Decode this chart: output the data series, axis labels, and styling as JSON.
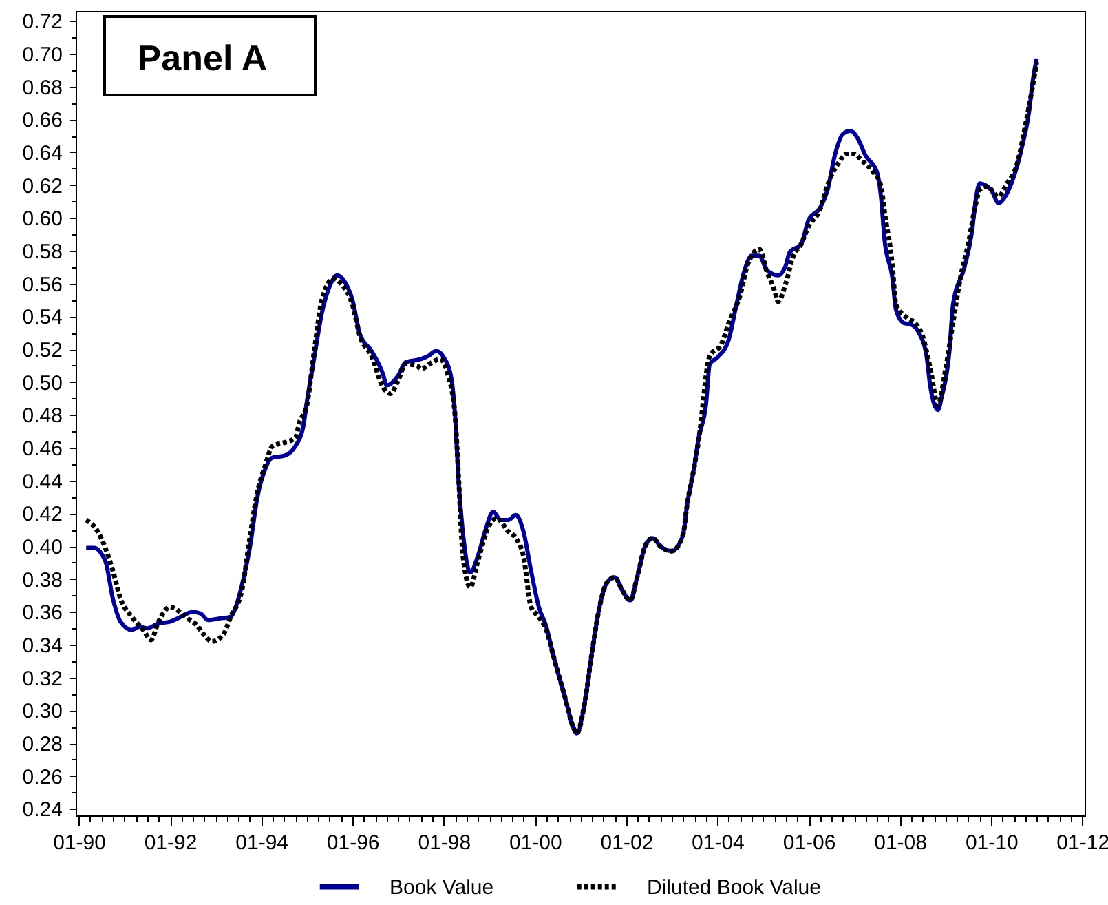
{
  "chart_data": {
    "type": "line",
    "annotations": [
      "Panel A"
    ],
    "xlim": [
      "1989-12-07",
      "2012-01-19"
    ],
    "ylim": [
      0.236,
      0.726
    ],
    "xticks": [
      {
        "value": "1990-01",
        "label": "01-90"
      },
      {
        "value": "1990-04",
        "label": null
      },
      {
        "value": "1990-07",
        "label": null
      },
      {
        "value": "1990-10",
        "label": null
      },
      {
        "value": "1991-01",
        "label": null
      },
      {
        "value": "1991-04",
        "label": null
      },
      {
        "value": "1991-07",
        "label": null
      },
      {
        "value": "1991-10",
        "label": null
      },
      {
        "value": "1992-01",
        "label": "01-92"
      },
      {
        "value": "1992-04",
        "label": null
      },
      {
        "value": "1992-07",
        "label": null
      },
      {
        "value": "1992-10",
        "label": null
      },
      {
        "value": "1993-01",
        "label": null
      },
      {
        "value": "1993-04",
        "label": null
      },
      {
        "value": "1993-07",
        "label": null
      },
      {
        "value": "1993-10",
        "label": null
      },
      {
        "value": "1994-01",
        "label": "01-94"
      },
      {
        "value": "1994-04",
        "label": null
      },
      {
        "value": "1994-07",
        "label": null
      },
      {
        "value": "1994-10",
        "label": null
      },
      {
        "value": "1995-01",
        "label": null
      },
      {
        "value": "1995-04",
        "label": null
      },
      {
        "value": "1995-07",
        "label": null
      },
      {
        "value": "1995-10",
        "label": null
      },
      {
        "value": "1996-01",
        "label": "01-96"
      },
      {
        "value": "1996-04",
        "label": null
      },
      {
        "value": "1996-07",
        "label": null
      },
      {
        "value": "1996-10",
        "label": null
      },
      {
        "value": "1997-01",
        "label": null
      },
      {
        "value": "1997-04",
        "label": null
      },
      {
        "value": "1997-07",
        "label": null
      },
      {
        "value": "1997-10",
        "label": null
      },
      {
        "value": "1998-01",
        "label": "01-98"
      },
      {
        "value": "1998-04",
        "label": null
      },
      {
        "value": "1998-07",
        "label": null
      },
      {
        "value": "1998-10",
        "label": null
      },
      {
        "value": "1999-01",
        "label": null
      },
      {
        "value": "1999-04",
        "label": null
      },
      {
        "value": "1999-07",
        "label": null
      },
      {
        "value": "1999-10",
        "label": null
      },
      {
        "value": "2000-01",
        "label": "01-00"
      },
      {
        "value": "2000-04",
        "label": null
      },
      {
        "value": "2000-07",
        "label": null
      },
      {
        "value": "2000-10",
        "label": null
      },
      {
        "value": "2001-01",
        "label": null
      },
      {
        "value": "2001-04",
        "label": null
      },
      {
        "value": "2001-07",
        "label": null
      },
      {
        "value": "2001-10",
        "label": null
      },
      {
        "value": "2002-01",
        "label": "01-02"
      },
      {
        "value": "2002-04",
        "label": null
      },
      {
        "value": "2002-07",
        "label": null
      },
      {
        "value": "2002-10",
        "label": null
      },
      {
        "value": "2003-01",
        "label": null
      },
      {
        "value": "2003-04",
        "label": null
      },
      {
        "value": "2003-07",
        "label": null
      },
      {
        "value": "2003-10",
        "label": null
      },
      {
        "value": "2004-01",
        "label": "01-04"
      },
      {
        "value": "2004-04",
        "label": null
      },
      {
        "value": "2004-07",
        "label": null
      },
      {
        "value": "2004-10",
        "label": null
      },
      {
        "value": "2005-01",
        "label": null
      },
      {
        "value": "2005-04",
        "label": null
      },
      {
        "value": "2005-07",
        "label": null
      },
      {
        "value": "2005-10",
        "label": null
      },
      {
        "value": "2006-01",
        "label": "01-06"
      },
      {
        "value": "2006-04",
        "label": null
      },
      {
        "value": "2006-07",
        "label": null
      },
      {
        "value": "2006-10",
        "label": null
      },
      {
        "value": "2007-01",
        "label": null
      },
      {
        "value": "2007-04",
        "label": null
      },
      {
        "value": "2007-07",
        "label": null
      },
      {
        "value": "2007-10",
        "label": null
      },
      {
        "value": "2008-01",
        "label": "01-08"
      },
      {
        "value": "2008-04",
        "label": null
      },
      {
        "value": "2008-07",
        "label": null
      },
      {
        "value": "2008-10",
        "label": null
      },
      {
        "value": "2009-01",
        "label": null
      },
      {
        "value": "2009-04",
        "label": null
      },
      {
        "value": "2009-07",
        "label": null
      },
      {
        "value": "2009-10",
        "label": null
      },
      {
        "value": "2010-01",
        "label": "01-10"
      },
      {
        "value": "2010-04",
        "label": null
      },
      {
        "value": "2010-07",
        "label": null
      },
      {
        "value": "2010-10",
        "label": null
      },
      {
        "value": "2011-01",
        "label": null
      },
      {
        "value": "2011-04",
        "label": null
      },
      {
        "value": "2011-07",
        "label": null
      },
      {
        "value": "2011-10",
        "label": null
      },
      {
        "value": "2012-01",
        "label": "01-12"
      }
    ],
    "yticks": [
      0.24,
      {
        "value": 0.25,
        "label": null
      },
      0.26,
      {
        "value": 0.27,
        "label": null
      },
      0.28,
      {
        "value": 0.29,
        "label": null
      },
      {
        "value": 0.3,
        "label": "0.30"
      },
      {
        "value": 0.31,
        "label": null
      },
      0.32,
      {
        "value": 0.33,
        "label": null
      },
      0.34,
      {
        "value": 0.35,
        "label": null
      },
      0.36,
      {
        "value": 0.37,
        "label": null
      },
      0.38,
      {
        "value": 0.39,
        "label": null
      },
      {
        "value": 0.4,
        "label": "0.40"
      },
      {
        "value": 0.41,
        "label": null
      },
      0.42,
      {
        "value": 0.43,
        "label": null
      },
      0.44,
      {
        "value": 0.45,
        "label": null
      },
      0.46,
      {
        "value": 0.47,
        "label": null
      },
      0.48,
      {
        "value": 0.49,
        "label": null
      },
      {
        "value": 0.5,
        "label": "0.50"
      },
      {
        "value": 0.51,
        "label": null
      },
      0.52,
      {
        "value": 0.53,
        "label": null
      },
      0.54,
      {
        "value": 0.55,
        "label": null
      },
      0.56,
      {
        "value": 0.57,
        "label": null
      },
      0.58,
      {
        "value": 0.59,
        "label": null
      },
      {
        "value": 0.6,
        "label": "0.60"
      },
      {
        "value": 0.61,
        "label": null
      },
      0.62,
      {
        "value": 0.63,
        "label": null
      },
      0.64,
      {
        "value": 0.65,
        "label": null
      },
      0.66,
      {
        "value": 0.67,
        "label": null
      },
      0.68,
      {
        "value": 0.69,
        "label": null
      },
      {
        "value": 0.7,
        "label": "0.70"
      },
      {
        "value": 0.71,
        "label": null
      },
      0.72
    ],
    "legend": "bottom",
    "series": [
      {
        "name": "Book Value",
        "color": "#000099",
        "line_style": "solid",
        "x": [
          "1990-03",
          "1990-05",
          "1990-08",
          "1990-10",
          "1990-12",
          "1991-03",
          "1991-05",
          "1991-07",
          "1991-10",
          "1992-01",
          "1992-03",
          "1992-07",
          "1992-09",
          "1992-11",
          "1993-02",
          "1993-05",
          "1993-06",
          "1993-08",
          "1993-10",
          "1993-12",
          "1994-02",
          "1994-04",
          "1994-07",
          "1994-10",
          "1994-12",
          "1995-01",
          "1995-03",
          "1995-05",
          "1995-07",
          "1995-09",
          "1995-11",
          "1996-01",
          "1996-03",
          "1996-06",
          "1996-09",
          "1996-10",
          "1997-01",
          "1997-03",
          "1997-07",
          "1997-09",
          "1997-11",
          "1998-01",
          "1998-03",
          "1998-04",
          "1998-05",
          "1998-06",
          "1998-08",
          "1998-10",
          "1998-12",
          "1999-02",
          "1999-04",
          "1999-06",
          "1999-08",
          "1999-10",
          "1999-12",
          "2000-02",
          "2000-04",
          "2000-06",
          "2000-09",
          "2000-11",
          "2000-12",
          "2001-02",
          "2001-04",
          "2001-06",
          "2001-08",
          "2001-10",
          "2001-12",
          "2002-02",
          "2002-04",
          "2002-06",
          "2002-08",
          "2002-10",
          "2003-01",
          "2003-04",
          "2003-05",
          "2003-07",
          "2003-08",
          "2003-10",
          "2003-11",
          "2004-01",
          "2004-04",
          "2004-06",
          "2004-08",
          "2004-10",
          "2004-12",
          "2005-02",
          "2005-05",
          "2005-07",
          "2005-08",
          "2005-11",
          "2006-01",
          "2006-04",
          "2006-06",
          "2006-08",
          "2006-10",
          "2006-12",
          "2007-02",
          "2007-04",
          "2007-07",
          "2007-08",
          "2007-09",
          "2007-11",
          "2007-12",
          "2008-02",
          "2008-04",
          "2008-06",
          "2008-08",
          "2008-09",
          "2008-11",
          "2008-12",
          "2009-02",
          "2009-03",
          "2009-06",
          "2009-08",
          "2009-09",
          "2009-10",
          "2010-01",
          "2010-03",
          "2010-05",
          "2010-07",
          "2010-09",
          "2010-11",
          "2010-12",
          "2011-01"
        ],
        "values": [
          0.399,
          0.399,
          0.391,
          0.368,
          0.354,
          0.349,
          0.351,
          0.35,
          0.353,
          0.354,
          0.356,
          0.36,
          0.359,
          0.355,
          0.356,
          0.357,
          0.361,
          0.377,
          0.399,
          0.43,
          0.447,
          0.454,
          0.455,
          0.461,
          0.472,
          0.488,
          0.515,
          0.542,
          0.558,
          0.565,
          0.561,
          0.55,
          0.529,
          0.519,
          0.505,
          0.498,
          0.504,
          0.512,
          0.514,
          0.516,
          0.519,
          0.515,
          0.503,
          0.48,
          0.438,
          0.41,
          0.384,
          0.394,
          0.41,
          0.421,
          0.416,
          0.416,
          0.419,
          0.409,
          0.385,
          0.363,
          0.351,
          0.332,
          0.307,
          0.29,
          0.286,
          0.304,
          0.335,
          0.363,
          0.378,
          0.381,
          0.373,
          0.367,
          0.382,
          0.4,
          0.405,
          0.4,
          0.397,
          0.407,
          0.424,
          0.449,
          0.465,
          0.486,
          0.511,
          0.515,
          0.526,
          0.547,
          0.567,
          0.577,
          0.577,
          0.568,
          0.565,
          0.571,
          0.579,
          0.584,
          0.599,
          0.606,
          0.617,
          0.639,
          0.651,
          0.653,
          0.648,
          0.638,
          0.628,
          0.614,
          0.586,
          0.564,
          0.544,
          0.536,
          0.535,
          0.53,
          0.516,
          0.497,
          0.483,
          0.491,
          0.519,
          0.547,
          0.57,
          0.592,
          0.612,
          0.621,
          0.617,
          0.609,
          0.614,
          0.625,
          0.642,
          0.665,
          0.684,
          0.697
        ]
      },
      {
        "name": "Diluted Book Value",
        "color": "#000000",
        "line_style": "dotted",
        "x": [
          "1990-03",
          "1990-06",
          "1990-08",
          "1990-10",
          "1990-12",
          "1991-03",
          "1991-06",
          "1991-08",
          "1991-10",
          "1992-01",
          "1992-03",
          "1992-05",
          "1992-08",
          "1992-10",
          "1992-12",
          "1993-03",
          "1993-05",
          "1993-08",
          "1993-10",
          "1993-12",
          "1994-02",
          "1994-04",
          "1994-07",
          "1994-10",
          "1994-11",
          "1995-01",
          "1995-03",
          "1995-05",
          "1995-08",
          "1995-10",
          "1996-01",
          "1996-03",
          "1996-06",
          "1996-09",
          "1996-11",
          "1997-01",
          "1997-03",
          "1997-06",
          "1997-07",
          "1997-10",
          "1997-12",
          "1998-02",
          "1998-04",
          "1998-05",
          "1998-06",
          "1998-08",
          "1998-10",
          "1999-01",
          "1999-03",
          "1999-06",
          "1999-08",
          "1999-10",
          "1999-12",
          "2000-02",
          "2000-04",
          "2000-06",
          "2000-09",
          "2000-11",
          "2000-12",
          "2001-02",
          "2001-04",
          "2001-06",
          "2001-08",
          "2001-10",
          "2001-12",
          "2002-02",
          "2002-04",
          "2002-06",
          "2002-08",
          "2002-10",
          "2003-01",
          "2003-04",
          "2003-05",
          "2003-07",
          "2003-08",
          "2003-11",
          "2004-02",
          "2004-04",
          "2004-07",
          "2004-09",
          "2004-12",
          "2005-02",
          "2005-04",
          "2005-05",
          "2005-07",
          "2005-09",
          "2005-11",
          "2006-01",
          "2006-04",
          "2006-06",
          "2006-09",
          "2006-11",
          "2007-01",
          "2007-03",
          "2007-06",
          "2007-08",
          "2007-09",
          "2007-11",
          "2007-12",
          "2008-03",
          "2008-05",
          "2008-07",
          "2008-09",
          "2008-11",
          "2009-01",
          "2009-03",
          "2009-05",
          "2009-07",
          "2009-09",
          "2009-10",
          "2009-12",
          "2010-03",
          "2010-05",
          "2010-08",
          "2010-10",
          "2010-12",
          "2011-01"
        ],
        "values": [
          0.416,
          0.409,
          0.399,
          0.385,
          0.368,
          0.357,
          0.349,
          0.343,
          0.354,
          0.363,
          0.361,
          0.357,
          0.352,
          0.346,
          0.342,
          0.346,
          0.357,
          0.374,
          0.405,
          0.433,
          0.449,
          0.461,
          0.463,
          0.466,
          0.475,
          0.486,
          0.519,
          0.55,
          0.563,
          0.56,
          0.547,
          0.528,
          0.516,
          0.497,
          0.493,
          0.501,
          0.511,
          0.51,
          0.508,
          0.512,
          0.514,
          0.505,
          0.48,
          0.44,
          0.396,
          0.375,
          0.391,
          0.413,
          0.417,
          0.409,
          0.405,
          0.394,
          0.363,
          0.357,
          0.349,
          0.332,
          0.307,
          0.29,
          0.286,
          0.304,
          0.335,
          0.363,
          0.378,
          0.381,
          0.373,
          0.367,
          0.382,
          0.4,
          0.405,
          0.4,
          0.397,
          0.407,
          0.424,
          0.449,
          0.463,
          0.516,
          0.523,
          0.536,
          0.553,
          0.572,
          0.581,
          0.567,
          0.556,
          0.549,
          0.56,
          0.577,
          0.584,
          0.595,
          0.605,
          0.62,
          0.634,
          0.639,
          0.639,
          0.635,
          0.628,
          0.62,
          0.603,
          0.572,
          0.547,
          0.539,
          0.536,
          0.528,
          0.508,
          0.486,
          0.508,
          0.536,
          0.564,
          0.584,
          0.609,
          0.617,
          0.619,
          0.613,
          0.62,
          0.634,
          0.656,
          0.681,
          0.695
        ]
      }
    ]
  }
}
